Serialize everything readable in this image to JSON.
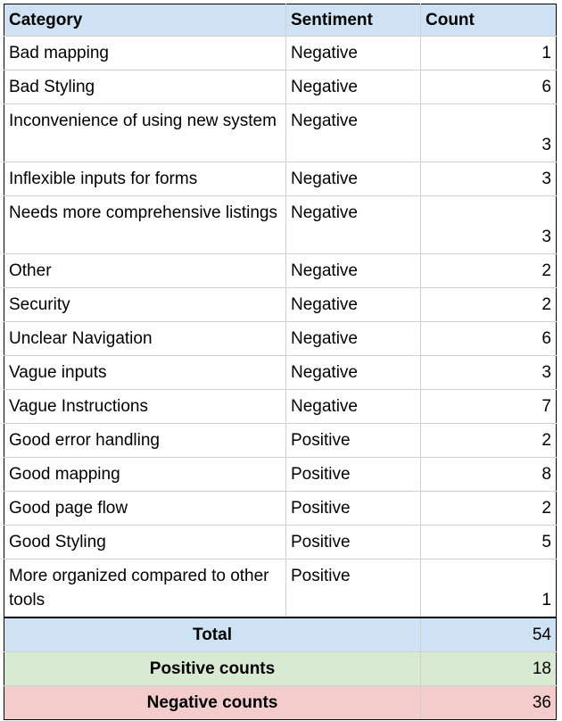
{
  "table": {
    "headers": [
      "Category",
      "Sentiment",
      "Count"
    ],
    "rows": [
      {
        "category": "Bad mapping",
        "sentiment": "Negative",
        "count": "1"
      },
      {
        "category": "Bad Styling",
        "sentiment": "Negative",
        "count": "6"
      },
      {
        "category": "Inconvenience of using new system",
        "sentiment": "Negative",
        "count": "3"
      },
      {
        "category": "Inflexible inputs for forms",
        "sentiment": "Negative",
        "count": "3"
      },
      {
        "category": "Needs more comprehensive listings",
        "sentiment": "Negative",
        "count": "3"
      },
      {
        "category": "Other",
        "sentiment": "Negative",
        "count": "2"
      },
      {
        "category": "Security",
        "sentiment": "Negative",
        "count": "2"
      },
      {
        "category": "Unclear Navigation",
        "sentiment": "Negative",
        "count": "6"
      },
      {
        "category": "Vague inputs",
        "sentiment": "Negative",
        "count": "3"
      },
      {
        "category": "Vague Instructions",
        "sentiment": "Negative",
        "count": "7"
      },
      {
        "category": "Good error handling",
        "sentiment": "Positive",
        "count": "2"
      },
      {
        "category": "Good mapping",
        "sentiment": "Positive",
        "count": "8"
      },
      {
        "category": "Good page flow",
        "sentiment": "Positive",
        "count": "2"
      },
      {
        "category": "Good Styling",
        "sentiment": "Positive",
        "count": "5"
      },
      {
        "category": "More organized compared to other tools",
        "sentiment": "Positive",
        "count": "1"
      }
    ],
    "summary": {
      "total_label": "Total",
      "total_value": "54",
      "positive_label": "Positive counts",
      "positive_value": "18",
      "negative_label": "Negative counts",
      "negative_value": "36"
    },
    "colors": {
      "header_bg": "#cfe2f3",
      "positive_bg": "#d9ead3",
      "negative_bg": "#f4cccc",
      "grid": "#d0d0d0"
    }
  }
}
